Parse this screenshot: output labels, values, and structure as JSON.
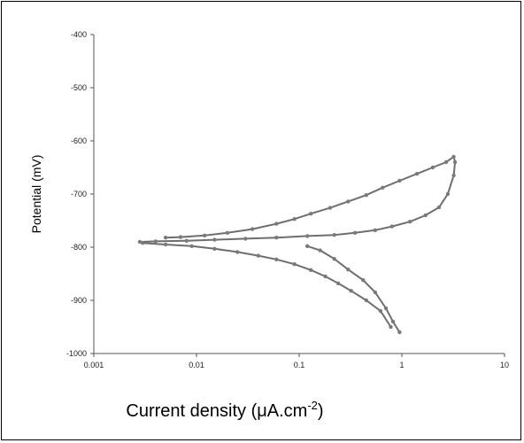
{
  "chart_data": {
    "type": "line",
    "title": "",
    "xlabel_main": "Current density (μA.cm",
    "xlabel_sup": "-2",
    "xlabel_tail": ")",
    "ylabel": "Potential (mV)",
    "x_scale": "log",
    "xlim": [
      0.001,
      10
    ],
    "ylim": [
      -1000,
      -400
    ],
    "x_ticks": [
      {
        "value": 0.001,
        "label": "0.001"
      },
      {
        "value": 0.01,
        "label": "0.01"
      },
      {
        "value": 0.1,
        "label": "0.1"
      },
      {
        "value": 1,
        "label": "1"
      },
      {
        "value": 10,
        "label": "10"
      }
    ],
    "y_ticks": [
      {
        "value": -400,
        "label": "-400"
      },
      {
        "value": -500,
        "label": "-500"
      },
      {
        "value": -600,
        "label": "-600"
      },
      {
        "value": -700,
        "label": "-700"
      },
      {
        "value": -800,
        "label": "-800"
      },
      {
        "value": -900,
        "label": "-900"
      },
      {
        "value": -1000,
        "label": "-1000"
      }
    ],
    "grid": false,
    "legend": "none",
    "series": [
      {
        "color": "#6e6e6e",
        "x": [
          0.78,
          0.62,
          0.45,
          0.32,
          0.24,
          0.18,
          0.13,
          0.09,
          0.06,
          0.04,
          0.025,
          0.015,
          0.009,
          0.005,
          0.003,
          0.0028,
          0.004,
          0.008,
          0.015,
          0.03,
          0.06,
          0.12,
          0.22,
          0.35,
          0.55,
          0.8,
          1.2,
          1.7,
          2.3,
          2.8,
          3.2,
          3.3,
          3.2,
          2.7,
          2.0,
          1.4,
          0.95,
          0.65,
          0.45,
          0.3,
          0.2,
          0.13,
          0.09,
          0.06,
          0.035,
          0.02,
          0.012,
          0.007,
          0.005
        ],
        "y": [
          -950,
          -920,
          -900,
          -882,
          -868,
          -855,
          -843,
          -832,
          -823,
          -816,
          -809,
          -803,
          -798,
          -795,
          -792,
          -790,
          -789,
          -788,
          -786,
          -784,
          -782,
          -779,
          -777,
          -773,
          -768,
          -761,
          -752,
          -740,
          -725,
          -700,
          -665,
          -640,
          -630,
          -640,
          -650,
          -662,
          -675,
          -688,
          -702,
          -714,
          -726,
          -737,
          -747,
          -756,
          -766,
          -773,
          -778,
          -781,
          -782
        ]
      },
      {
        "color": "#6e6e6e",
        "x": [
          0.95,
          0.82,
          0.7,
          0.55,
          0.42,
          0.3,
          0.22,
          0.16,
          0.12
        ],
        "y": [
          -960,
          -940,
          -915,
          -885,
          -862,
          -842,
          -822,
          -806,
          -798
        ]
      }
    ]
  }
}
